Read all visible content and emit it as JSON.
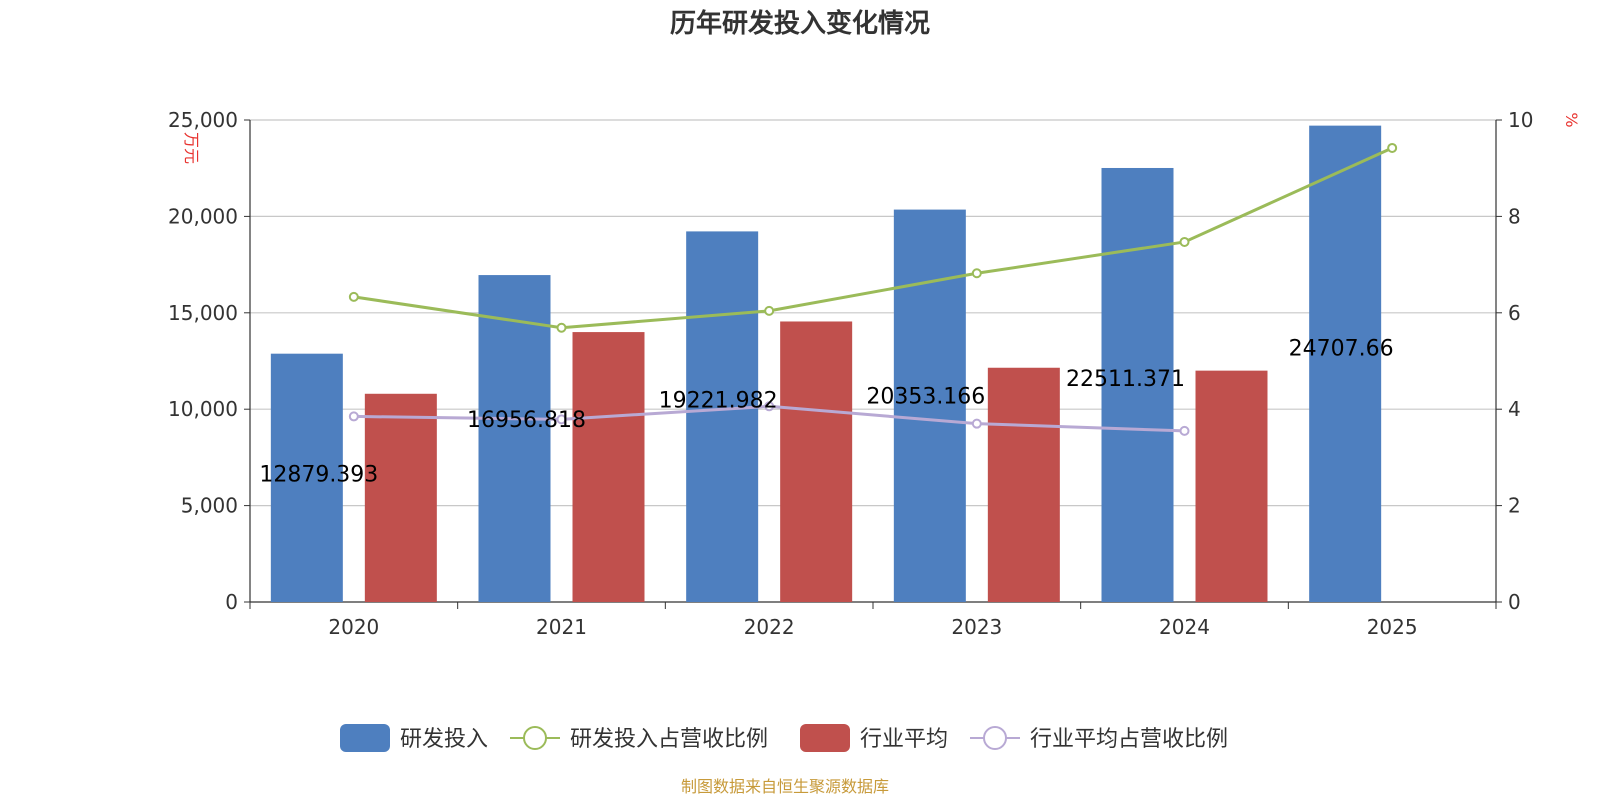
{
  "chart_data": {
    "type": "bar",
    "title": "历年研发投入变化情况",
    "categories": [
      "2020",
      "2021",
      "2022",
      "2023",
      "2024",
      "2025"
    ],
    "y_left": {
      "unit": "万元",
      "ylim": [
        0,
        25000
      ],
      "ticks": [
        0,
        5000,
        10000,
        15000,
        20000,
        25000
      ],
      "tick_labels": [
        "0",
        "5,000",
        "10,000",
        "15,000",
        "20,000",
        "25,000"
      ]
    },
    "y_right": {
      "unit": "%",
      "ylim": [
        0,
        10
      ],
      "ticks": [
        0,
        2,
        4,
        6,
        8,
        10
      ],
      "tick_labels": [
        "0",
        "2",
        "4",
        "6",
        "8",
        "10"
      ]
    },
    "grid": true,
    "legend_position": "bottom",
    "series": [
      {
        "name": "研发投入",
        "kind": "bar",
        "axis": "left",
        "color": "#4e7fbf",
        "values": [
          12879.393,
          16956.818,
          19221.982,
          20353.166,
          22511.371,
          24707.66
        ],
        "labels": [
          "12879.393",
          "16956.818",
          "19221.982",
          "20353.166",
          "22511.371",
          "24707.66"
        ]
      },
      {
        "name": "研发投入占营收比例",
        "kind": "line",
        "axis": "right",
        "color": "#9bbb59",
        "values": [
          6.33,
          5.69,
          6.04,
          6.82,
          7.47,
          9.42
        ]
      },
      {
        "name": "行业平均",
        "kind": "bar",
        "axis": "left",
        "color": "#c0504d",
        "values": [
          10800,
          14000,
          14550,
          12150,
          12000,
          null
        ]
      },
      {
        "name": "行业平均占营收比例",
        "kind": "line",
        "axis": "right",
        "color": "#b8a9d4",
        "values": [
          3.85,
          3.79,
          4.06,
          3.7,
          3.55,
          null
        ]
      }
    ]
  },
  "source_note": "制图数据来自恒生聚源数据库"
}
